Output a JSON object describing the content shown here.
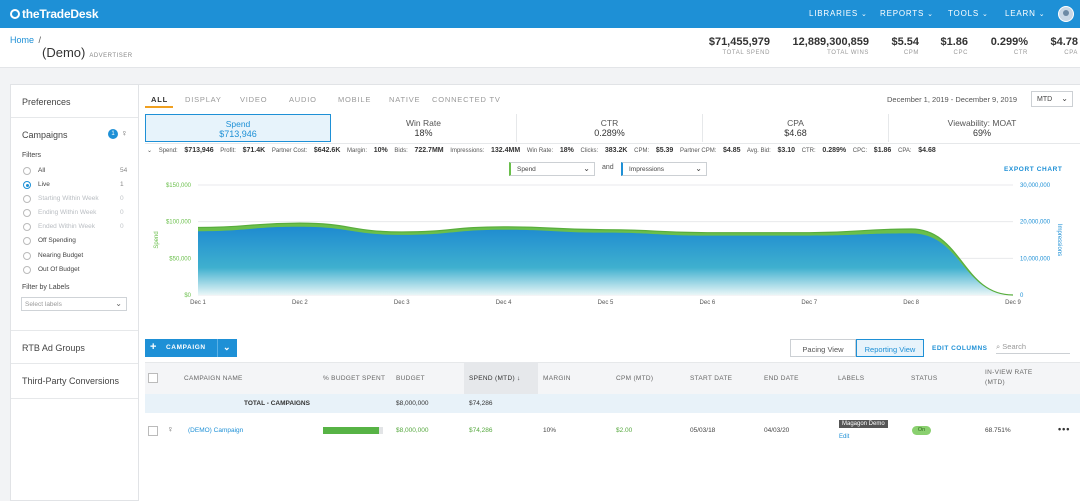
{
  "topbar": {
    "logo": "theTradeDesk",
    "nav": [
      {
        "label": "LIBRARIES"
      },
      {
        "label": "REPORTS"
      },
      {
        "label": "TOOLS"
      },
      {
        "label": "LEARN"
      }
    ]
  },
  "header": {
    "breadcrumb_home": "Home",
    "breadcrumb_sep": "/",
    "advertiser_name": "(Demo)",
    "advertiser_tag": "ADVERTISER",
    "kpis": [
      {
        "value": "$71,455,979",
        "label": "TOTAL SPEND"
      },
      {
        "value": "12,889,300,859",
        "label": "TOTAL WINS"
      },
      {
        "value": "$5.54",
        "label": "CPM"
      },
      {
        "value": "$1.86",
        "label": "CPC"
      },
      {
        "value": "0.299%",
        "label": "CTR"
      },
      {
        "value": "$4.78",
        "label": "CPA"
      }
    ]
  },
  "sidebar": {
    "preferences": "Preferences",
    "campaigns": "Campaigns",
    "campaigns_badge": "1",
    "filters_title": "Filters",
    "filters": [
      {
        "label": "All",
        "count": "54"
      },
      {
        "label": "Live",
        "count": "1"
      },
      {
        "label": "Starting Within Week",
        "count": "0"
      },
      {
        "label": "Ending Within Week",
        "count": "0"
      },
      {
        "label": "Ended Within Week",
        "count": "0"
      },
      {
        "label": "Off Spending",
        "count": ""
      },
      {
        "label": "Nearing Budget",
        "count": ""
      },
      {
        "label": "Out Of Budget",
        "count": ""
      }
    ],
    "filter_by_labels": "Filter by Labels",
    "select_labels_placeholder": "Select labels",
    "rtb_ad_groups": "RTB Ad Groups",
    "third_party": "Third-Party Conversions"
  },
  "channel_tabs": [
    "ALL",
    "DISPLAY",
    "VIDEO",
    "AUDIO",
    "MOBILE",
    "NATIVE",
    "CONNECTED TV"
  ],
  "date_range": "December 1, 2019 - December 9, 2019",
  "period_select": "MTD",
  "metric_cards": [
    {
      "name": "Spend",
      "value": "$713,946"
    },
    {
      "name": "Win Rate",
      "value": "18%"
    },
    {
      "name": "CTR",
      "value": "0.289%"
    },
    {
      "name": "CPA",
      "value": "$4.68"
    },
    {
      "name": "Viewability: MOAT",
      "value": "69%"
    }
  ],
  "stats": [
    {
      "k": "Spend:",
      "v": "$713,946"
    },
    {
      "k": "Profit:",
      "v": "$71.4K"
    },
    {
      "k": "Partner Cost:",
      "v": "$642.6K"
    },
    {
      "k": "Margin:",
      "v": "10%"
    },
    {
      "k": "Bids:",
      "v": "722.7MM"
    },
    {
      "k": "Impressions:",
      "v": "132.4MM"
    },
    {
      "k": "Win Rate:",
      "v": "18%"
    },
    {
      "k": "Clicks:",
      "v": "383.2K"
    },
    {
      "k": "CPM:",
      "v": "$5.39"
    },
    {
      "k": "Partner CPM:",
      "v": "$4.85"
    },
    {
      "k": "Avg. Bid:",
      "v": "$3.10"
    },
    {
      "k": "CTR:",
      "v": "0.289%"
    },
    {
      "k": "CPC:",
      "v": "$1.86"
    },
    {
      "k": "CPA:",
      "v": "$4.68"
    }
  ],
  "chart_controls": {
    "metric1": "Spend",
    "and": "and",
    "metric2": "Impressions",
    "export": "EXPORT CHART"
  },
  "chart_data": {
    "type": "area",
    "x": [
      "Dec 1",
      "Dec 2",
      "Dec 3",
      "Dec 4",
      "Dec 5",
      "Dec 6",
      "Dec 7",
      "Dec 8",
      "Dec 9"
    ],
    "ylabel": "Spend",
    "y2label": "Impressions",
    "yticks": [
      "$0",
      "$50,000",
      "$100,000",
      "$150,000"
    ],
    "y2ticks": [
      "0",
      "10,000,000",
      "20,000,000",
      "30,000,000"
    ],
    "ylim": [
      0,
      150000
    ],
    "y2lim": [
      0,
      30000000
    ],
    "series": [
      {
        "name": "Spend",
        "color": "#6abf4b",
        "values": [
          92000,
          98000,
          86000,
          93000,
          89000,
          85000,
          85000,
          90000,
          0
        ]
      },
      {
        "name": "Impressions",
        "color": "#1e90d6",
        "values": [
          17400000,
          18600000,
          16400000,
          17800000,
          17000000,
          16200000,
          16200000,
          16800000,
          0
        ]
      }
    ]
  },
  "toolbar": {
    "add_campaign": "CAMPAIGN",
    "pacing_view": "Pacing View",
    "reporting_view": "Reporting View",
    "edit_columns": "EDIT COLUMNS",
    "search_placeholder": "Search"
  },
  "table": {
    "headers": [
      "CAMPAIGN NAME",
      "% BUDGET SPENT",
      "BUDGET",
      "SPEND (MTD)",
      "MARGIN",
      "CPM (MTD)",
      "START DATE",
      "END DATE",
      "LABELS",
      "STATUS",
      "IN-VIEW RATE",
      "(MTD)"
    ],
    "total": {
      "label": "TOTAL - CAMPAIGNS",
      "budget": "$8,000,000",
      "spend": "$74,286"
    },
    "rows": [
      {
        "name": "(DEMO) Campaign",
        "budget_spent_pct": 0.93,
        "budget": "$8,000,000",
        "spend": "$74,286",
        "margin": "10%",
        "cpm": "$2.00",
        "start": "05/03/18",
        "end": "04/03/20",
        "label": "Magagon Demo",
        "edit": "Edit",
        "status": "On",
        "inview": "68.751%"
      }
    ]
  }
}
